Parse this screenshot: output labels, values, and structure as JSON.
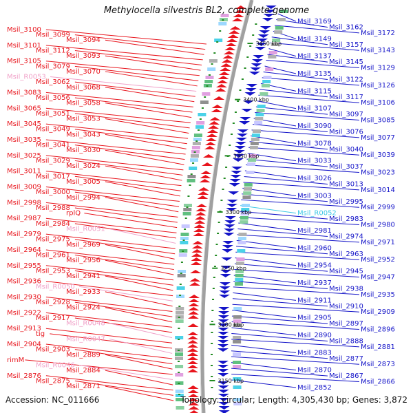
{
  "title": "Methylocella silvestris BL2, complete genome",
  "accession": "Accession: NC_011666",
  "topology": "Topology: circular; Length: 4,305,430 bp; Genes: 3,872",
  "colors": {
    "left_label": "#e8141c",
    "left_rna": "#f0a0c8",
    "right_label": "#1414c8",
    "right_rna": "#3cc8e6",
    "backbone": "#a0a0a0",
    "tick": "#228b22"
  },
  "scale_labels": [
    {
      "text": "3450 kbp",
      "kbp": 3450
    },
    {
      "text": "3400 kbp",
      "kbp": 3400
    },
    {
      "text": "3350 kbp",
      "kbp": 3350
    },
    {
      "text": "3300 kbp",
      "kbp": 3300
    },
    {
      "text": "3250 kbp",
      "kbp": 3250
    },
    {
      "text": "3200 kbp",
      "kbp": 3200
    },
    {
      "text": "3150 kbp",
      "kbp": 3150
    }
  ],
  "left_genes": [
    {
      "text": "Msil_3100",
      "kind": "cds"
    },
    {
      "text": "Msil_3099",
      "kind": "cds"
    },
    {
      "text": "Msil_3094",
      "kind": "cds"
    },
    {
      "text": "Msil_3101",
      "kind": "cds"
    },
    {
      "text": "Msil_3112",
      "kind": "cds"
    },
    {
      "text": "Msil_3093",
      "kind": "cds"
    },
    {
      "text": "Msil_3105",
      "kind": "cds"
    },
    {
      "text": "Msil_3079",
      "kind": "cds"
    },
    {
      "text": "Msil_3070",
      "kind": "cds"
    },
    {
      "text": "Msil_R0053",
      "kind": "rna"
    },
    {
      "text": "Msil_3062",
      "kind": "cds"
    },
    {
      "text": "Msil_3068",
      "kind": "cds"
    },
    {
      "text": "Msil_3083",
      "kind": "cds"
    },
    {
      "text": "Msil_3056",
      "kind": "cds"
    },
    {
      "text": "Msil_3058",
      "kind": "cds"
    },
    {
      "text": "Msil_3065",
      "kind": "cds"
    },
    {
      "text": "Msil_3051",
      "kind": "cds"
    },
    {
      "text": "Msil_3053",
      "kind": "cds"
    },
    {
      "text": "Msil_3045",
      "kind": "cds"
    },
    {
      "text": "Msil_3049",
      "kind": "cds"
    },
    {
      "text": "Msil_3043",
      "kind": "cds"
    },
    {
      "text": "Msil_3035",
      "kind": "cds"
    },
    {
      "text": "Msil_3041",
      "kind": "cds"
    },
    {
      "text": "Msil_3030",
      "kind": "cds"
    },
    {
      "text": "Msil_3025",
      "kind": "cds"
    },
    {
      "text": "Msil_3029",
      "kind": "cds"
    },
    {
      "text": "Msil_3024",
      "kind": "cds"
    },
    {
      "text": "Msil_3011",
      "kind": "cds"
    },
    {
      "text": "Msil_3017",
      "kind": "cds"
    },
    {
      "text": "Msil_3005",
      "kind": "cds"
    },
    {
      "text": "Msil_3009",
      "kind": "cds"
    },
    {
      "text": "Msil_3000",
      "kind": "cds"
    },
    {
      "text": "Msil_2994",
      "kind": "cds"
    },
    {
      "text": "Msil_2998",
      "kind": "cds"
    },
    {
      "text": "Msil_2988",
      "kind": "cds"
    },
    {
      "text": "rplQ",
      "kind": "cds"
    },
    {
      "text": "Msil_2987",
      "kind": "cds"
    },
    {
      "text": "Msil_2984",
      "kind": "cds"
    },
    {
      "text": "Msil_R0051",
      "kind": "rna"
    },
    {
      "text": "Msil_2979",
      "kind": "cds"
    },
    {
      "text": "Msil_2975",
      "kind": "cds"
    },
    {
      "text": "Msil_2969",
      "kind": "cds"
    },
    {
      "text": "Msil_2964",
      "kind": "cds"
    },
    {
      "text": "Msil_2961",
      "kind": "cds"
    },
    {
      "text": "Msil_2956",
      "kind": "cds"
    },
    {
      "text": "Msil_2955",
      "kind": "cds"
    },
    {
      "text": "Msil_2953",
      "kind": "cds"
    },
    {
      "text": "Msil_2941",
      "kind": "cds"
    },
    {
      "text": "Msil_2936",
      "kind": "cds"
    },
    {
      "text": "Msil_R0050",
      "kind": "rna"
    },
    {
      "text": "Msil_2933",
      "kind": "cds"
    },
    {
      "text": "Msil_2930",
      "kind": "cds"
    },
    {
      "text": "Msil_2928",
      "kind": "cds"
    },
    {
      "text": "Msil_2924",
      "kind": "cds"
    },
    {
      "text": "Msil_2922",
      "kind": "cds"
    },
    {
      "text": "Msil_2917",
      "kind": "cds"
    },
    {
      "text": "Msil_R0048",
      "kind": "rna"
    },
    {
      "text": "Msil_2913",
      "kind": "cds"
    },
    {
      "text": "tig",
      "kind": "cds"
    },
    {
      "text": "Msil_R0047",
      "kind": "rna"
    },
    {
      "text": "Msil_2904",
      "kind": "cds"
    },
    {
      "text": "Msil_2903",
      "kind": "cds"
    },
    {
      "text": "Msil_2889",
      "kind": "cds"
    },
    {
      "text": "rimM",
      "kind": "cds"
    },
    {
      "text": "Msil_R0046",
      "kind": "rna"
    },
    {
      "text": "Msil_2884",
      "kind": "cds"
    },
    {
      "text": "Msil_2876",
      "kind": "cds"
    },
    {
      "text": "Msil_2875",
      "kind": "cds"
    },
    {
      "text": "Msil_2871",
      "kind": "cds"
    }
  ],
  "right_genes": [
    {
      "text": "Msil_3169",
      "kind": "cds"
    },
    {
      "text": "Msil_3162",
      "kind": "cds"
    },
    {
      "text": "Msil_3172",
      "kind": "cds"
    },
    {
      "text": "Msil_3149",
      "kind": "cds"
    },
    {
      "text": "Msil_3157",
      "kind": "cds"
    },
    {
      "text": "Msil_3143",
      "kind": "cds"
    },
    {
      "text": "Msil_3137",
      "kind": "cds"
    },
    {
      "text": "Msil_3145",
      "kind": "cds"
    },
    {
      "text": "Msil_3129",
      "kind": "cds"
    },
    {
      "text": "Msil_3135",
      "kind": "cds"
    },
    {
      "text": "Msil_3122",
      "kind": "cds"
    },
    {
      "text": "Msil_3126",
      "kind": "cds"
    },
    {
      "text": "Msil_3115",
      "kind": "cds"
    },
    {
      "text": "Msil_3117",
      "kind": "cds"
    },
    {
      "text": "Msil_3106",
      "kind": "cds"
    },
    {
      "text": "Msil_3107",
      "kind": "cds"
    },
    {
      "text": "Msil_3097",
      "kind": "cds"
    },
    {
      "text": "Msil_3085",
      "kind": "cds"
    },
    {
      "text": "Msil_3090",
      "kind": "cds"
    },
    {
      "text": "Msil_3076",
      "kind": "cds"
    },
    {
      "text": "Msil_3077",
      "kind": "cds"
    },
    {
      "text": "Msil_3078",
      "kind": "cds"
    },
    {
      "text": "Msil_3040",
      "kind": "cds"
    },
    {
      "text": "Msil_3039",
      "kind": "cds"
    },
    {
      "text": "Msil_3033",
      "kind": "cds"
    },
    {
      "text": "Msil_3037",
      "kind": "cds"
    },
    {
      "text": "Msil_3023",
      "kind": "cds"
    },
    {
      "text": "Msil_3026",
      "kind": "cds"
    },
    {
      "text": "Msil_3013",
      "kind": "cds"
    },
    {
      "text": "Msil_3014",
      "kind": "cds"
    },
    {
      "text": "Msil_3003",
      "kind": "cds"
    },
    {
      "text": "Msil_2995",
      "kind": "cds"
    },
    {
      "text": "Msil_2999",
      "kind": "cds"
    },
    {
      "text": "Msil_R0052",
      "kind": "rna"
    },
    {
      "text": "Msil_2983",
      "kind": "cds"
    },
    {
      "text": "Msil_2980",
      "kind": "cds"
    },
    {
      "text": "Msil_2981",
      "kind": "cds"
    },
    {
      "text": "Msil_2974",
      "kind": "cds"
    },
    {
      "text": "Msil_2971",
      "kind": "cds"
    },
    {
      "text": "Msil_2960",
      "kind": "cds"
    },
    {
      "text": "Msil_2963",
      "kind": "cds"
    },
    {
      "text": "Msil_2952",
      "kind": "cds"
    },
    {
      "text": "Msil_2954",
      "kind": "cds"
    },
    {
      "text": "Msil_2945",
      "kind": "cds"
    },
    {
      "text": "Msil_2947",
      "kind": "cds"
    },
    {
      "text": "Msil_2937",
      "kind": "cds"
    },
    {
      "text": "Msil_2938",
      "kind": "cds"
    },
    {
      "text": "Msil_2935",
      "kind": "cds"
    },
    {
      "text": "Msil_2911",
      "kind": "cds"
    },
    {
      "text": "Msil_2910",
      "kind": "cds"
    },
    {
      "text": "Msil_2909",
      "kind": "cds"
    },
    {
      "text": "Msil_2905",
      "kind": "cds"
    },
    {
      "text": "Msil_2897",
      "kind": "cds"
    },
    {
      "text": "Msil_2896",
      "kind": "cds"
    },
    {
      "text": "Msil_2890",
      "kind": "cds"
    },
    {
      "text": "Msil_2888",
      "kind": "cds"
    },
    {
      "text": "Msil_2881",
      "kind": "cds"
    },
    {
      "text": "Msil_2883",
      "kind": "cds"
    },
    {
      "text": "Msil_2877",
      "kind": "cds"
    },
    {
      "text": "Msil_2873",
      "kind": "cds"
    },
    {
      "text": "Msil_2870",
      "kind": "cds"
    },
    {
      "text": "Msil_2867",
      "kind": "cds"
    },
    {
      "text": "Msil_2866",
      "kind": "cds"
    },
    {
      "text": "Msil_2852",
      "kind": "cds"
    }
  ]
}
